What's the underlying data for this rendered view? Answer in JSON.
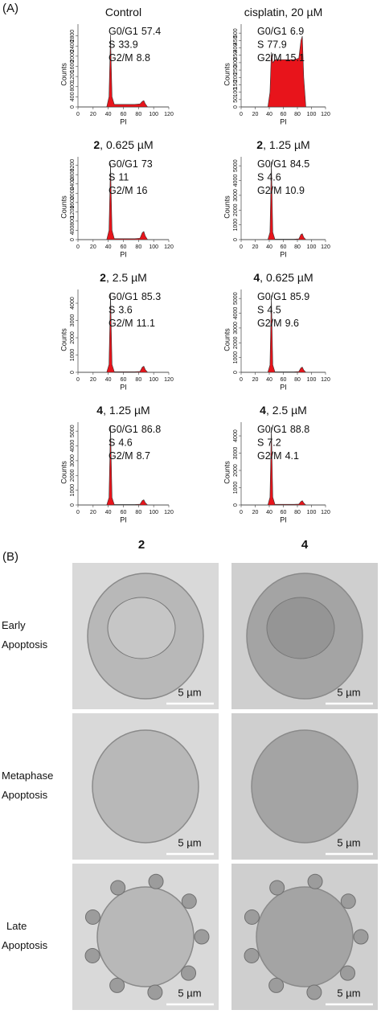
{
  "panel_a_label": "(A)",
  "chart_data": [
    {
      "type": "area",
      "title": "Control",
      "x": [
        0,
        38,
        41,
        43,
        45,
        48,
        60,
        75,
        82,
        85,
        87,
        89,
        92,
        120
      ],
      "values": [
        0,
        0,
        400,
        2850,
        400,
        100,
        100,
        100,
        120,
        220,
        250,
        120,
        0,
        0
      ],
      "color": "#e8141b",
      "xlim": [
        0,
        120
      ],
      "xticks": [
        0,
        20,
        40,
        60,
        80,
        100,
        120
      ],
      "ylim": [
        0,
        3200
      ],
      "yticks": [
        0,
        400,
        800,
        1200,
        1600,
        2000,
        2400,
        2800
      ],
      "xlabel": "PI",
      "ylabel": "Counts",
      "phases": [
        {
          "label": "G0/G1",
          "value": 57.4
        },
        {
          "label": "S",
          "value": 33.9
        },
        {
          "label": "G2/M",
          "value": 8.8
        }
      ]
    },
    {
      "type": "area",
      "title": "cisplatin, 20 µM",
      "x": [
        0,
        38,
        41,
        43,
        45,
        48,
        60,
        75,
        82,
        85,
        87,
        89,
        92,
        120
      ],
      "values": [
        0,
        0,
        100,
        370,
        300,
        320,
        320,
        320,
        330,
        450,
        480,
        200,
        0,
        0
      ],
      "color": "#e8141b",
      "xlim": [
        0,
        120
      ],
      "xticks": [
        0,
        20,
        40,
        60,
        80,
        100,
        120
      ],
      "ylim": [
        0,
        550
      ],
      "yticks": [
        0,
        50,
        100,
        150,
        200,
        250,
        300,
        350,
        400,
        450,
        500
      ],
      "xlabel": "PI",
      "ylabel": "Counts",
      "phases": [
        {
          "label": "G0/G1",
          "value": 6.9
        },
        {
          "label": "S",
          "value": 77.9
        },
        {
          "label": "G2/M",
          "value": 15.1
        }
      ]
    },
    {
      "type": "area",
      "compound": "2",
      "title": ", 0.625 µM",
      "x": [
        0,
        38,
        41,
        43,
        45,
        48,
        60,
        75,
        82,
        85,
        87,
        89,
        92,
        120
      ],
      "values": [
        0,
        0,
        400,
        3300,
        400,
        40,
        40,
        40,
        60,
        300,
        350,
        150,
        0,
        0
      ],
      "color": "#e8141b",
      "xlim": [
        0,
        120
      ],
      "xticks": [
        0,
        20,
        40,
        60,
        80,
        100,
        120
      ],
      "ylim": [
        0,
        3500
      ],
      "yticks": [
        0,
        400,
        800,
        1200,
        1600,
        2000,
        2400,
        2800,
        3200
      ],
      "xlabel": "PI",
      "ylabel": "Counts",
      "phases": [
        {
          "label": "G0/G1",
          "value": 73.0
        },
        {
          "label": "S",
          "value": 11.0
        },
        {
          "label": "G2/M",
          "value": 16.0
        }
      ]
    },
    {
      "type": "area",
      "compound": "2",
      "title": ", 1.25 µM",
      "x": [
        0,
        38,
        41,
        43,
        45,
        48,
        60,
        75,
        82,
        85,
        87,
        89,
        92,
        120
      ],
      "values": [
        0,
        0,
        500,
        5300,
        500,
        30,
        30,
        30,
        50,
        350,
        400,
        150,
        0,
        0
      ],
      "color": "#e8141b",
      "xlim": [
        0,
        120
      ],
      "xticks": [
        0,
        20,
        40,
        60,
        80,
        100,
        120
      ],
      "ylim": [
        0,
        5500
      ],
      "yticks": [
        0,
        1000,
        2000,
        3000,
        4000,
        5000
      ],
      "xlabel": "PI",
      "ylabel": "Counts",
      "phases": [
        {
          "label": "G0/G1",
          "value": 84.5
        },
        {
          "label": "S",
          "value": 4.6
        },
        {
          "label": "G2/M",
          "value": 10.9
        }
      ]
    },
    {
      "type": "area",
      "compound": "2",
      "title": ", 2.5 µM",
      "x": [
        0,
        38,
        41,
        43,
        45,
        48,
        60,
        75,
        82,
        85,
        87,
        89,
        92,
        120
      ],
      "values": [
        0,
        0,
        450,
        4600,
        450,
        30,
        30,
        30,
        50,
        300,
        350,
        150,
        0,
        0
      ],
      "color": "#e8141b",
      "xlim": [
        0,
        120
      ],
      "xticks": [
        0,
        20,
        40,
        60,
        80,
        100,
        120
      ],
      "ylim": [
        0,
        4700
      ],
      "yticks": [
        0,
        1000,
        2000,
        3000,
        4000
      ],
      "xlabel": "PI",
      "ylabel": "Counts",
      "phases": [
        {
          "label": "G0/G1",
          "value": 85.3
        },
        {
          "label": "S",
          "value": 3.6
        },
        {
          "label": "G2/M",
          "value": 11.1
        }
      ]
    },
    {
      "type": "area",
      "compound": "4",
      "title": ", 0.625 µM",
      "x": [
        0,
        38,
        41,
        43,
        45,
        48,
        60,
        75,
        82,
        85,
        87,
        89,
        92,
        120
      ],
      "values": [
        0,
        0,
        500,
        5200,
        500,
        30,
        30,
        30,
        50,
        300,
        350,
        150,
        0,
        0
      ],
      "color": "#e8141b",
      "xlim": [
        0,
        120
      ],
      "xticks": [
        0,
        20,
        40,
        60,
        80,
        100,
        120
      ],
      "ylim": [
        0,
        5500
      ],
      "yticks": [
        0,
        1000,
        2000,
        3000,
        4000,
        5000
      ],
      "xlabel": "PI",
      "ylabel": "Counts",
      "phases": [
        {
          "label": "G0/G1",
          "value": 85.9
        },
        {
          "label": "S",
          "value": 4.5
        },
        {
          "label": "G2/M",
          "value": 9.6
        }
      ]
    },
    {
      "type": "area",
      "compound": "4",
      "title": ", 1.25 µM",
      "x": [
        0,
        38,
        41,
        43,
        45,
        48,
        60,
        75,
        82,
        85,
        87,
        89,
        92,
        120
      ],
      "values": [
        0,
        0,
        500,
        5400,
        500,
        30,
        30,
        30,
        50,
        300,
        350,
        150,
        0,
        0
      ],
      "color": "#e8141b",
      "xlim": [
        0,
        120
      ],
      "xticks": [
        0,
        20,
        40,
        60,
        80,
        100,
        120
      ],
      "ylim": [
        0,
        5500
      ],
      "yticks": [
        0,
        1000,
        2000,
        3000,
        4000,
        5000
      ],
      "xlabel": "PI",
      "ylabel": "Counts",
      "phases": [
        {
          "label": "G0/G1",
          "value": 86.8
        },
        {
          "label": "S",
          "value": 4.6
        },
        {
          "label": "G2/M",
          "value": 8.7
        }
      ]
    },
    {
      "type": "area",
      "compound": "4",
      "title": ", 2.5 µM",
      "x": [
        0,
        38,
        41,
        43,
        45,
        48,
        60,
        75,
        82,
        85,
        87,
        89,
        92,
        120
      ],
      "values": [
        0,
        0,
        450,
        4500,
        450,
        40,
        40,
        40,
        50,
        200,
        250,
        120,
        0,
        0
      ],
      "color": "#e8141b",
      "xlim": [
        0,
        120
      ],
      "xticks": [
        0,
        20,
        40,
        60,
        80,
        100,
        120
      ],
      "ylim": [
        0,
        4700
      ],
      "yticks": [
        0,
        1000,
        2000,
        3000,
        4000
      ],
      "xlabel": "PI",
      "ylabel": "Counts",
      "phases": [
        {
          "label": "G0/G1",
          "value": 88.8
        },
        {
          "label": "S",
          "value": 7.2
        },
        {
          "label": "G2/M",
          "value": 4.1
        }
      ]
    }
  ],
  "panel_b": {
    "label": "(B)",
    "columns": [
      "2",
      "4"
    ],
    "rows": [
      {
        "label": [
          "Early",
          "Apoptosis"
        ]
      },
      {
        "label": [
          "Metaphase",
          "Apoptosis"
        ]
      },
      {
        "label": [
          "Late",
          "Apoptosis"
        ]
      }
    ],
    "scale_bar": "5 µm"
  }
}
